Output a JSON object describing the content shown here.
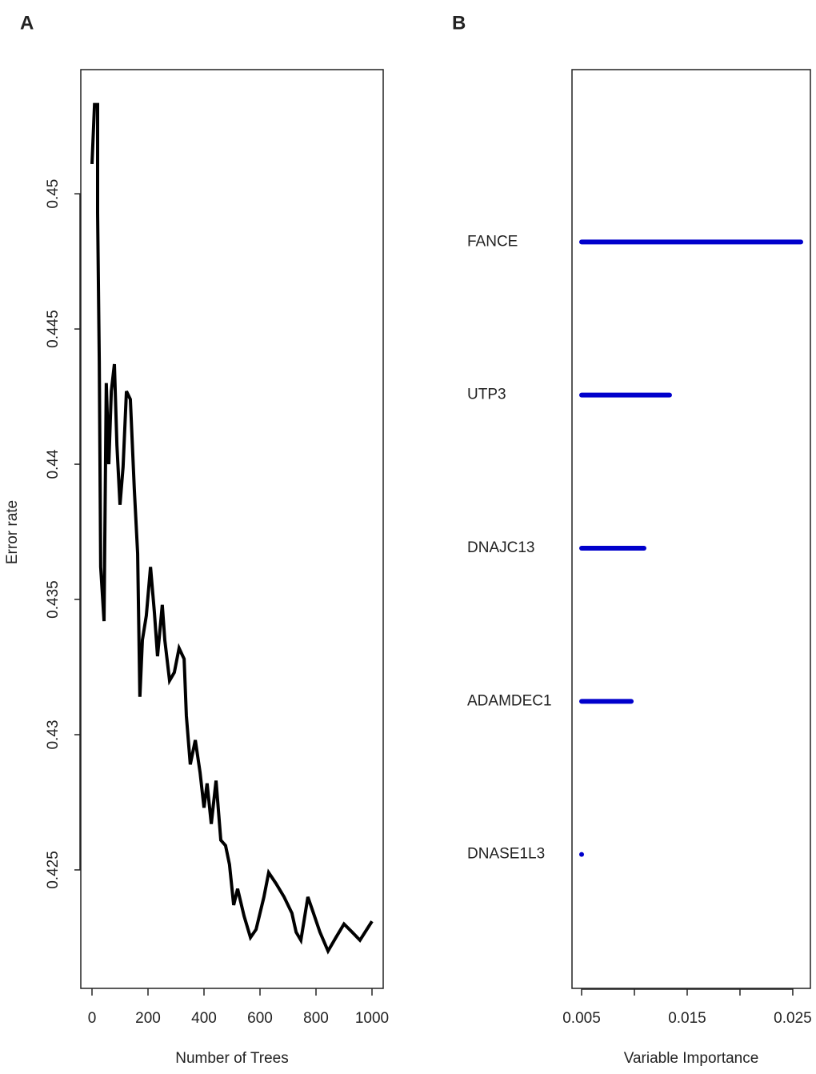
{
  "chart_data": [
    {
      "type": "line",
      "panel_label": "A",
      "x_label": "Number of Trees",
      "y_label": "Error rate",
      "xlim": [
        -40,
        1040
      ],
      "ylim": [
        0.42062,
        0.45459
      ],
      "xticks": [
        0,
        200,
        400,
        600,
        800,
        1000
      ],
      "yticks": [
        0.425,
        0.43,
        0.435,
        0.44,
        0.445,
        0.45
      ],
      "color": "#000000",
      "x": [
        0,
        9,
        20,
        20,
        26,
        31,
        43,
        51,
        60,
        69,
        80,
        89,
        100,
        111,
        123,
        137,
        151,
        163,
        171,
        180,
        194,
        209,
        223,
        234,
        251,
        260,
        277,
        294,
        311,
        329,
        337,
        351,
        369,
        386,
        400,
        411,
        426,
        443,
        460,
        477,
        491,
        506,
        520,
        543,
        566,
        586,
        614,
        631,
        657,
        686,
        714,
        729,
        746,
        771,
        791,
        814,
        843,
        871,
        900,
        929,
        957,
        1000
      ],
      "values": [
        0.4511,
        0.4533,
        0.4533,
        0.4493,
        0.4438,
        0.4362,
        0.4342,
        0.443,
        0.44,
        0.4427,
        0.4437,
        0.4407,
        0.4385,
        0.4399,
        0.4427,
        0.4424,
        0.4391,
        0.4367,
        0.4314,
        0.4335,
        0.4344,
        0.4362,
        0.4345,
        0.4329,
        0.4348,
        0.4335,
        0.432,
        0.4323,
        0.4332,
        0.4328,
        0.4307,
        0.4289,
        0.4298,
        0.4286,
        0.4273,
        0.4282,
        0.4267,
        0.4283,
        0.4261,
        0.4259,
        0.4252,
        0.4237,
        0.4243,
        0.4233,
        0.4225,
        0.4228,
        0.424,
        0.4249,
        0.4245,
        0.424,
        0.4234,
        0.4227,
        0.4224,
        0.424,
        0.4234,
        0.4227,
        0.422,
        0.4225,
        0.423,
        0.4227,
        0.4224,
        0.4231
      ]
    },
    {
      "type": "dotbar",
      "panel_label": "B",
      "x_label": "Variable Importance",
      "xlim": [
        0.00409,
        0.02667
      ],
      "xticks": [
        0.005,
        0.015,
        0.025
      ],
      "xminor_ticks": [
        0.01,
        0.02
      ],
      "color": "#0000cc",
      "categories": [
        "FANCE",
        "UTP3",
        "DNAJC13",
        "ADAMDEC1",
        "DNASE1L3"
      ],
      "values": [
        0.02576,
        0.01333,
        0.01091,
        0.0097,
        0.005
      ]
    }
  ]
}
